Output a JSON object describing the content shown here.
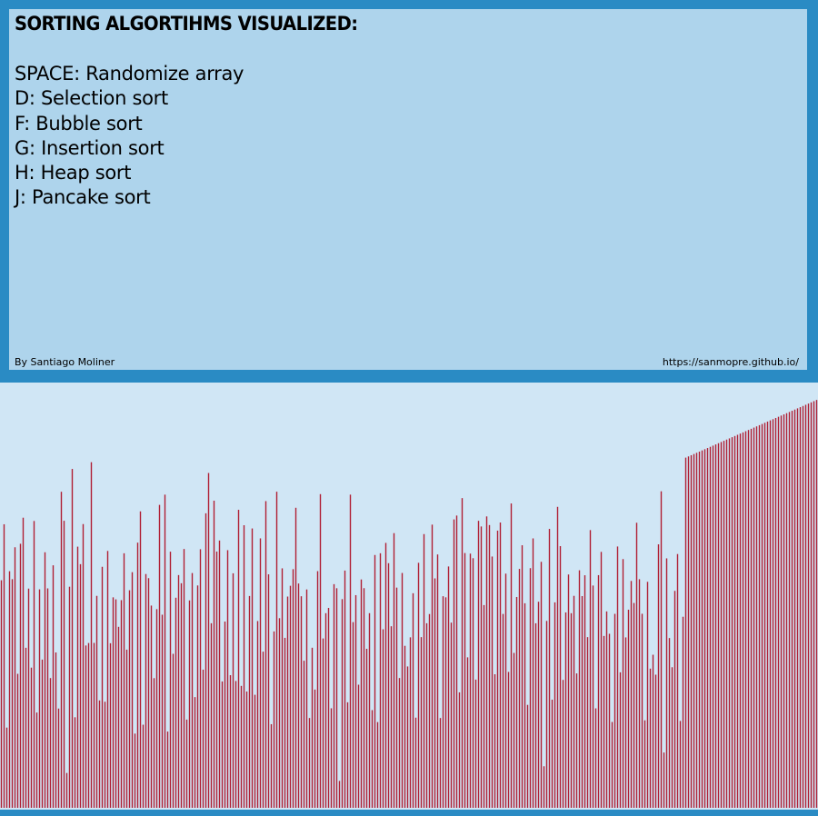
{
  "header": {
    "title": "SORTING ALGORTIHMS VISUALIZED:"
  },
  "controls": [
    {
      "key": "SPACE",
      "action": "Randomize array",
      "text": "SPACE: Randomize array"
    },
    {
      "key": "D",
      "action": "Selection sort",
      "text": "D: Selection sort"
    },
    {
      "key": "F",
      "action": "Bubble sort",
      "text": "F: Bubble sort"
    },
    {
      "key": "G",
      "action": "Insertion sort",
      "text": "G: Insertion sort"
    },
    {
      "key": "H",
      "action": "Heap sort",
      "text": "H: Heap sort"
    },
    {
      "key": "J",
      "action": "Pancake sort",
      "text": "J: Pancake sort"
    }
  ],
  "footer": {
    "author": "By Santiago Moliner",
    "link": "https://sanmopre.github.io/"
  },
  "colors": {
    "frame": "#2a8bc4",
    "panel": "#aed4ec",
    "canvas": "#d0e6f5",
    "bar": "#b01f34"
  },
  "chart_data": {
    "type": "bar",
    "bar_count": 300,
    "value_range": [
      0,
      1
    ],
    "sorted_tail_start": 251,
    "sorted_tail_end_value": 0.955,
    "unsorted_max_value": 0.82,
    "sample_values": [
      0.62,
      0.8,
      0.25,
      0.79,
      0.65,
      0.74,
      0.48,
      0.55,
      0.81,
      0.4,
      0.7,
      0.12,
      0.76,
      0.33,
      0.58,
      0.45,
      0.63,
      0.77,
      0.2,
      0.68,
      0.51,
      0.36,
      0.72,
      0.59,
      0.07
    ]
  }
}
